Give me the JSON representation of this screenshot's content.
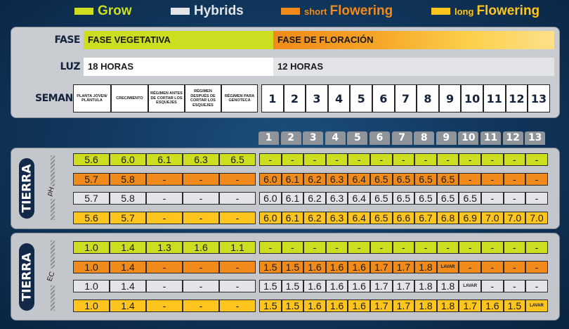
{
  "legend": [
    {
      "prefix": "",
      "label": "Grow",
      "color": "#cddd1f"
    },
    {
      "prefix": "",
      "label": "Hybrids",
      "color": "#e2e4e7"
    },
    {
      "prefix": "short",
      "label": "Flowering",
      "color": "#f08b1b"
    },
    {
      "prefix": "long",
      "label": "Flowering",
      "color": "#fdc51e"
    }
  ],
  "top_table": {
    "fase_label": "FASE",
    "fase_veg": "FASE VEGETATIVA",
    "fase_flor": "FASE DE FLORACIÓN",
    "luz_label": "LUZ",
    "luz_veg": "18 HORAS",
    "luz_flor": "12 HORAS",
    "semana_label": "SEMANA",
    "stages": [
      "PLANTA JOVEN/ PLÁNTULA",
      "CRECIMIENTO",
      "RÉGIMEN ANTES DE CORTAR LOS ESQUEJES",
      "RÉGIMEN DESPUÉS DE CORTAR LOS ESQUEJES",
      "RÉGIMEN PARA GENOTECA"
    ],
    "weeks": [
      "1",
      "2",
      "3",
      "4",
      "5",
      "6",
      "7",
      "8",
      "9",
      "10",
      "11",
      "12",
      "13"
    ]
  },
  "week_header": [
    "1",
    "2",
    "3",
    "4",
    "5",
    "6",
    "7",
    "8",
    "9",
    "10",
    "11",
    "12",
    "13"
  ],
  "ph_panel": {
    "title": "TIERRA",
    "measure": "pH",
    "rows": [
      {
        "color": "#cddd1f",
        "cells": [
          "5.6",
          "6.0",
          "6.1",
          "6.3",
          "6.5",
          "-",
          "-",
          "-",
          "-",
          "-",
          "-",
          "-",
          "-",
          "-",
          "-",
          "-",
          "-",
          "-"
        ]
      },
      {
        "color": "#f08b1b",
        "cells": [
          "5.7",
          "5.8",
          "-",
          "-",
          "-",
          "6.0",
          "6.1",
          "6.2",
          "6.3",
          "6.4",
          "6.5",
          "6.5",
          "6.5",
          "6.5",
          "-",
          "-",
          "-",
          "-"
        ]
      },
      {
        "color": "#e2e4e7",
        "cells": [
          "5.7",
          "5.8",
          "-",
          "-",
          "-",
          "6.0",
          "6.1",
          "6.2",
          "6.3",
          "6.4",
          "6.5",
          "6.5",
          "6.5",
          "6.5",
          "6.5",
          "-",
          "-",
          "-"
        ]
      },
      {
        "color": "#fdc51e",
        "cells": [
          "5.6",
          "5.7",
          "-",
          "-",
          "-",
          "6.0",
          "6.1",
          "6.2",
          "6.3",
          "6.4",
          "6.5",
          "6.6",
          "6.7",
          "6.8",
          "6.9",
          "7.0",
          "7.0",
          "7.0"
        ]
      }
    ]
  },
  "ec_panel": {
    "title": "TIERRA",
    "measure": "EC",
    "rows": [
      {
        "color": "#cddd1f",
        "cells": [
          "1.0",
          "1.4",
          "1.3",
          "1.6",
          "1.1",
          "-",
          "-",
          "-",
          "-",
          "-",
          "-",
          "-",
          "-",
          "-",
          "-",
          "-",
          "-",
          "-"
        ]
      },
      {
        "color": "#f08b1b",
        "cells": [
          "1.0",
          "1.4",
          "-",
          "-",
          "-",
          "1.5",
          "1.5",
          "1.6",
          "1.6",
          "1.6",
          "1.7",
          "1.7",
          "1.8",
          "LAVAR",
          "-",
          "-",
          "-",
          "-"
        ]
      },
      {
        "color": "#e2e4e7",
        "cells": [
          "1.0",
          "1.4",
          "-",
          "-",
          "-",
          "1.5",
          "1.5",
          "1.6",
          "1.6",
          "1.6",
          "1.7",
          "1.7",
          "1.8",
          "1.8",
          "LAVAR",
          "-",
          "-",
          "-"
        ]
      },
      {
        "color": "#fdc51e",
        "cells": [
          "1.0",
          "1.4",
          "-",
          "-",
          "-",
          "1.5",
          "1.5",
          "1.6",
          "1.6",
          "1.6",
          "1.7",
          "1.7",
          "1.8",
          "1.8",
          "1.7",
          "1.6",
          "1.5",
          "LAVAR"
        ]
      }
    ]
  }
}
